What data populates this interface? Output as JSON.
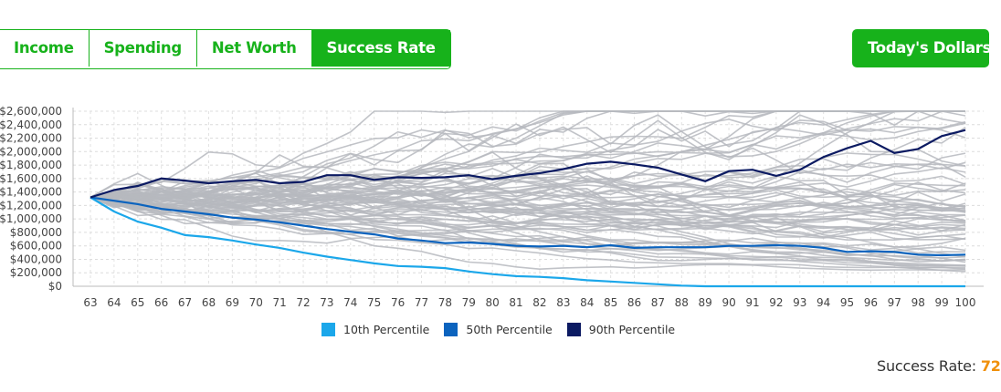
{
  "tabs": [
    {
      "label": "Income",
      "active": false
    },
    {
      "label": "Spending",
      "active": false
    },
    {
      "label": "Net Worth",
      "active": false
    },
    {
      "label": "Success Rate",
      "active": true
    }
  ],
  "dollars_button": "Today's Dollars",
  "success_rate": {
    "label": "Success Rate:",
    "value": "72"
  },
  "colors": {
    "accent": "#17b21b",
    "sim_line": "#b6b9be",
    "p10": "#1ba7ea",
    "p50": "#0b63be",
    "p90": "#0b1a62",
    "success_value": "#f0900a"
  },
  "chart_data": {
    "type": "line",
    "x": [
      63,
      64,
      65,
      66,
      67,
      68,
      69,
      70,
      71,
      72,
      73,
      74,
      75,
      76,
      77,
      78,
      79,
      80,
      81,
      82,
      83,
      84,
      85,
      86,
      87,
      88,
      89,
      90,
      91,
      92,
      93,
      94,
      95,
      96,
      97,
      98,
      99,
      100
    ],
    "y_ticks": [
      "$0",
      "$200,000",
      "$400,000",
      "$600,000",
      "$800,000",
      "$1,000,000",
      "$1,200,000",
      "$1,400,000",
      "$1,600,000",
      "$1,800,000",
      "$2,000,000",
      "$2,200,000",
      "$2,400,000",
      "$2,600,000"
    ],
    "ylim": [
      0,
      2600000
    ],
    "grid": true,
    "legend_position": "bottom-center",
    "series": [
      {
        "name": "10th Percentile",
        "color": "#1ba7ea",
        "values": [
          1320000,
          1110000,
          960000,
          870000,
          760000,
          730000,
          680000,
          620000,
          570000,
          500000,
          440000,
          390000,
          340000,
          300000,
          290000,
          270000,
          220000,
          180000,
          150000,
          140000,
          120000,
          90000,
          70000,
          50000,
          30000,
          10000,
          0,
          0,
          0,
          0,
          0,
          0,
          0,
          0,
          0,
          0,
          0,
          0
        ]
      },
      {
        "name": "50th Percentile",
        "color": "#0b63be",
        "values": [
          1320000,
          1270000,
          1220000,
          1150000,
          1110000,
          1070000,
          1020000,
          990000,
          950000,
          900000,
          850000,
          810000,
          770000,
          710000,
          680000,
          640000,
          650000,
          630000,
          600000,
          590000,
          600000,
          580000,
          610000,
          570000,
          580000,
          580000,
          580000,
          600000,
          600000,
          610000,
          600000,
          570000,
          510000,
          520000,
          510000,
          470000,
          460000,
          470000
        ]
      },
      {
        "name": "90th Percentile",
        "color": "#0b1a62",
        "values": [
          1320000,
          1430000,
          1490000,
          1600000,
          1570000,
          1530000,
          1560000,
          1580000,
          1530000,
          1550000,
          1650000,
          1650000,
          1580000,
          1620000,
          1610000,
          1620000,
          1650000,
          1590000,
          1640000,
          1680000,
          1740000,
          1820000,
          1850000,
          1810000,
          1760000,
          1660000,
          1560000,
          1710000,
          1730000,
          1640000,
          1730000,
          1920000,
          2050000,
          2160000,
          1980000,
          2040000,
          2230000,
          2320000
        ]
      }
    ]
  }
}
